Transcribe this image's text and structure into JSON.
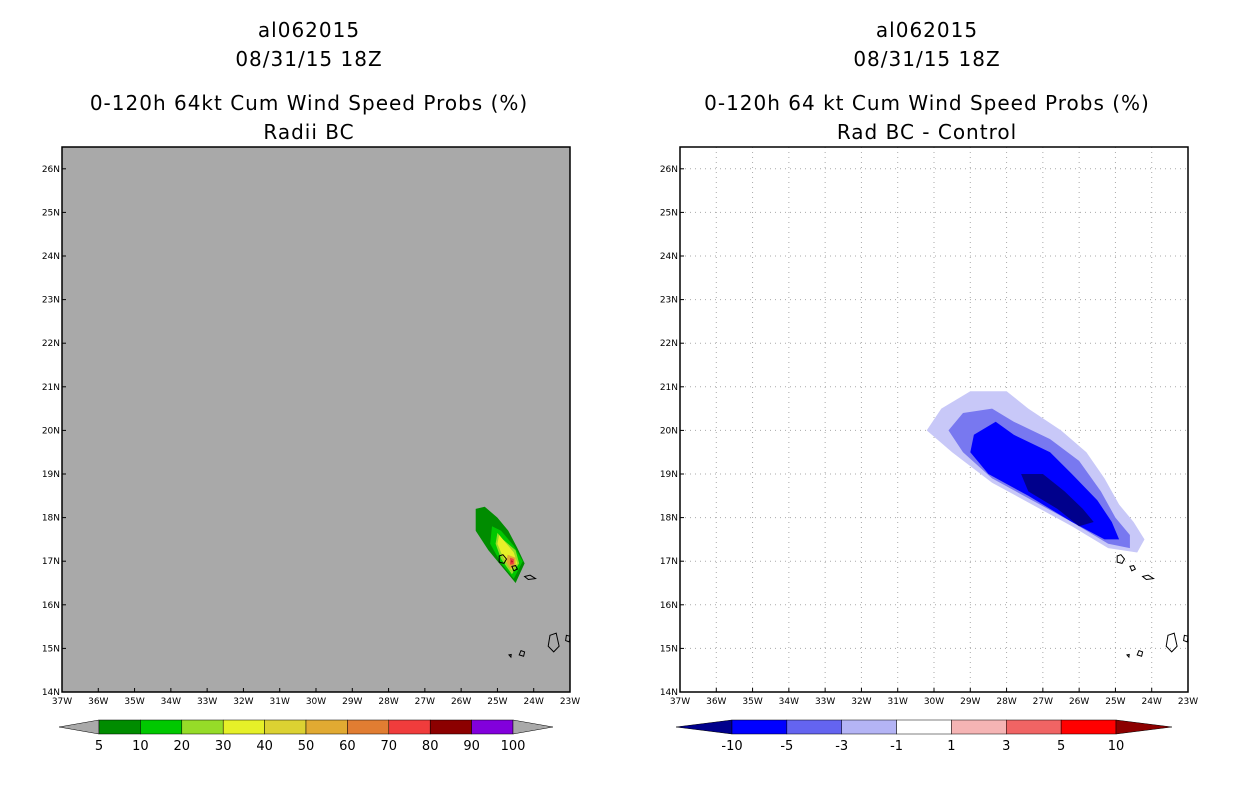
{
  "chart_data": [
    {
      "type": "filled-contour-map",
      "title_lines": [
        "al062015",
        "08/31/15 18Z",
        "0-120h 64kt Cum Wind Speed Probs (%)",
        "Radii BC"
      ],
      "xlim": [
        -37,
        -23
      ],
      "ylim": [
        14,
        26.5
      ],
      "x_ticks": [
        "37W",
        "36W",
        "35W",
        "34W",
        "33W",
        "32W",
        "31W",
        "30W",
        "29W",
        "28W",
        "27W",
        "26W",
        "25W",
        "24W",
        "23W"
      ],
      "y_ticks": [
        "14N",
        "15N",
        "16N",
        "17N",
        "18N",
        "19N",
        "20N",
        "21N",
        "22N",
        "23N",
        "24N",
        "25N",
        "26N"
      ],
      "grid": false,
      "background": "#a9a9a9",
      "colorbar": {
        "levels": [
          "5",
          "10",
          "20",
          "30",
          "40",
          "50",
          "60",
          "70",
          "80",
          "90",
          "100"
        ],
        "colors": [
          "#008c00",
          "#00c800",
          "#96dc28",
          "#e6f028",
          "#dcd232",
          "#e1aa32",
          "#e17d32",
          "#f03c3c",
          "#8c0000",
          "#8200dc"
        ],
        "under_color": "#a9a9a9",
        "over_color": "#a9a9a9"
      },
      "contours": [
        {
          "level": 5,
          "color": "#008c00",
          "polygon": [
            [
              -25.6,
              18.2
            ],
            [
              -25.35,
              18.25
            ],
            [
              -25.0,
              18.0
            ],
            [
              -24.7,
              17.7
            ],
            [
              -24.45,
              17.3
            ],
            [
              -24.25,
              16.95
            ],
            [
              -24.5,
              16.5
            ],
            [
              -24.85,
              16.85
            ],
            [
              -25.25,
              17.25
            ],
            [
              -25.6,
              17.7
            ]
          ]
        },
        {
          "level": 10,
          "color": "#00c800",
          "polygon": [
            [
              -25.15,
              17.8
            ],
            [
              -24.9,
              17.7
            ],
            [
              -24.55,
              17.35
            ],
            [
              -24.3,
              17.0
            ],
            [
              -24.55,
              16.6
            ],
            [
              -24.9,
              16.95
            ],
            [
              -25.2,
              17.4
            ]
          ]
        },
        {
          "level": 20,
          "color": "#96dc28",
          "polygon": [
            [
              -25.0,
              17.65
            ],
            [
              -24.85,
              17.5
            ],
            [
              -24.5,
              17.25
            ],
            [
              -24.4,
              16.95
            ],
            [
              -24.6,
              16.7
            ],
            [
              -24.9,
              17.05
            ],
            [
              -25.05,
              17.4
            ]
          ]
        },
        {
          "level": 30,
          "color": "#e6f028",
          "polygon": [
            [
              -24.95,
              17.6
            ],
            [
              -24.8,
              17.45
            ],
            [
              -24.55,
              17.2
            ],
            [
              -24.45,
              16.95
            ],
            [
              -24.62,
              16.8
            ],
            [
              -24.85,
              17.1
            ],
            [
              -25.0,
              17.4
            ]
          ]
        },
        {
          "level": 50,
          "color": "#e1aa32",
          "polygon": [
            [
              -24.72,
              17.15
            ],
            [
              -24.5,
              17.08
            ],
            [
              -24.5,
              16.88
            ],
            [
              -24.65,
              16.82
            ],
            [
              -24.75,
              16.98
            ]
          ]
        },
        {
          "level": 70,
          "color": "#f03c3c",
          "polygon": [
            [
              -24.65,
              17.08
            ],
            [
              -24.55,
              17.05
            ],
            [
              -24.55,
              16.93
            ],
            [
              -24.65,
              16.92
            ]
          ]
        },
        {
          "level": 90,
          "color": "#8c0000",
          "polygon": [
            [
              -24.62,
              17.02
            ],
            [
              -24.58,
              17.0
            ],
            [
              -24.6,
              16.96
            ]
          ]
        }
      ]
    },
    {
      "type": "filled-contour-map",
      "title_lines": [
        "al062015",
        "08/31/15 18Z",
        "0-120h 64 kt Cum Wind Speed Probs (%)",
        "Rad BC - Control"
      ],
      "xlim": [
        -37,
        -23
      ],
      "ylim": [
        14,
        26.5
      ],
      "x_ticks": [
        "37W",
        "36W",
        "35W",
        "34W",
        "33W",
        "32W",
        "31W",
        "30W",
        "29W",
        "28W",
        "27W",
        "26W",
        "25W",
        "24W",
        "23W"
      ],
      "y_ticks": [
        "14N",
        "15N",
        "16N",
        "17N",
        "18N",
        "19N",
        "20N",
        "21N",
        "22N",
        "23N",
        "24N",
        "25N",
        "26N"
      ],
      "grid": true,
      "background": "#ffffff",
      "colorbar": {
        "levels": [
          "-10",
          "-5",
          "-3",
          "-1",
          "1",
          "3",
          "5",
          "10"
        ],
        "colors": [
          "#0000ff",
          "#6464f0",
          "#b4b4f5",
          "#ffffff",
          "#f5b4b4",
          "#f06464",
          "#ff0000"
        ],
        "under_color": "#00008c",
        "over_color": "#8c0000"
      },
      "contours": [
        {
          "level": -1,
          "color": "#c8c8f8",
          "polygon": [
            [
              -30.2,
              20.0
            ],
            [
              -29.8,
              20.5
            ],
            [
              -29.0,
              20.9
            ],
            [
              -28.0,
              20.9
            ],
            [
              -27.4,
              20.5
            ],
            [
              -26.5,
              20.0
            ],
            [
              -25.8,
              19.5
            ],
            [
              -25.3,
              18.9
            ],
            [
              -24.9,
              18.3
            ],
            [
              -24.5,
              17.9
            ],
            [
              -24.2,
              17.5
            ],
            [
              -24.4,
              17.2
            ],
            [
              -25.2,
              17.3
            ],
            [
              -26.2,
              17.8
            ],
            [
              -27.3,
              18.3
            ],
            [
              -28.4,
              18.8
            ],
            [
              -29.5,
              19.5
            ]
          ]
        },
        {
          "level": -3,
          "color": "#7878f0",
          "polygon": [
            [
              -29.6,
              20.0
            ],
            [
              -29.2,
              20.4
            ],
            [
              -28.4,
              20.5
            ],
            [
              -27.8,
              20.2
            ],
            [
              -26.8,
              19.8
            ],
            [
              -26.0,
              19.3
            ],
            [
              -25.4,
              18.6
            ],
            [
              -25.0,
              18.0
            ],
            [
              -24.6,
              17.6
            ],
            [
              -24.6,
              17.3
            ],
            [
              -25.2,
              17.4
            ],
            [
              -26.2,
              17.9
            ],
            [
              -27.3,
              18.4
            ],
            [
              -28.4,
              18.9
            ],
            [
              -29.2,
              19.5
            ]
          ]
        },
        {
          "level": -5,
          "color": "#0000ff",
          "polygon": [
            [
              -29.0,
              19.5
            ],
            [
              -28.9,
              19.9
            ],
            [
              -28.3,
              20.2
            ],
            [
              -27.8,
              19.9
            ],
            [
              -26.8,
              19.5
            ],
            [
              -26.2,
              19.0
            ],
            [
              -25.5,
              18.4
            ],
            [
              -25.1,
              17.9
            ],
            [
              -24.9,
              17.5
            ],
            [
              -25.3,
              17.5
            ],
            [
              -26.2,
              17.9
            ],
            [
              -27.4,
              18.5
            ],
            [
              -28.5,
              19.0
            ]
          ]
        },
        {
          "level": -10,
          "color": "#00008c",
          "polygon": [
            [
              -27.6,
              19.0
            ],
            [
              -27.0,
              19.0
            ],
            [
              -26.4,
              18.6
            ],
            [
              -25.9,
              18.2
            ],
            [
              -25.6,
              17.9
            ],
            [
              -26.0,
              17.8
            ],
            [
              -26.6,
              18.2
            ],
            [
              -27.4,
              18.6
            ]
          ]
        }
      ]
    }
  ]
}
